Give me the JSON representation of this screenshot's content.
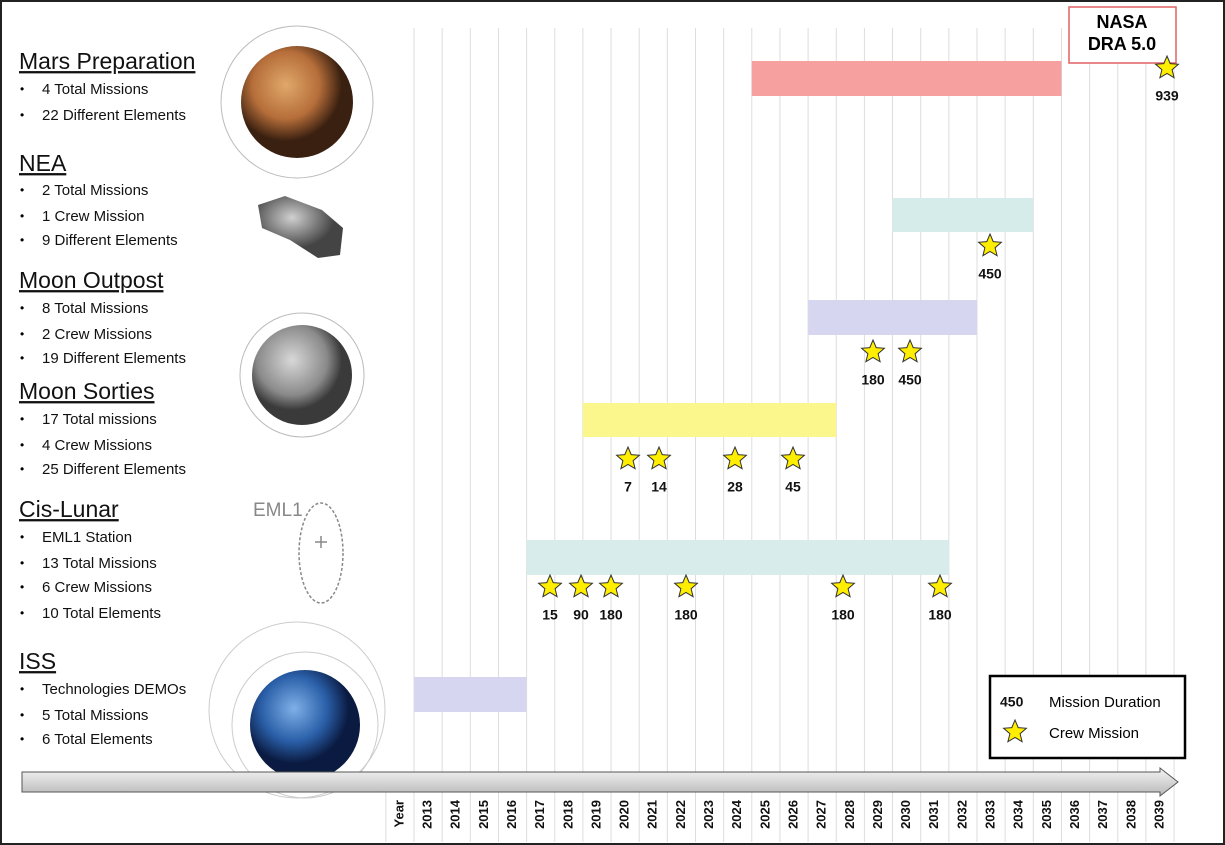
{
  "sections": [
    {
      "title": "Mars Preparation",
      "bullets": [
        "4 Total Missions",
        "22 Different Elements"
      ],
      "crew_durations": [
        939
      ]
    },
    {
      "title": "NEA",
      "bullets": [
        "2 Total Missions",
        "1 Crew Mission",
        "9 Different  Elements"
      ],
      "crew_durations": [
        450
      ]
    },
    {
      "title": "Moon Outpost",
      "bullets": [
        "8 Total Missions",
        "2 Crew Missions",
        "19 Different  Elements"
      ],
      "crew_durations": [
        180,
        450
      ]
    },
    {
      "title": "Moon Sorties",
      "bullets": [
        "17 Total missions",
        "4 Crew Missions",
        "25 Different Elements"
      ],
      "crew_durations": [
        7,
        14,
        28,
        45
      ]
    },
    {
      "title": "Cis-Lunar",
      "bullets": [
        "EML1 Station",
        "13 Total Missions",
        "6 Crew Missions",
        "10 Total Elements"
      ],
      "crew_durations": [
        15,
        90,
        180,
        180,
        180,
        180
      ]
    },
    {
      "title": "ISS",
      "bullets": [
        "Technologies DEMOs",
        "5 Total Missions",
        "6 Total Elements"
      ],
      "crew_durations": []
    }
  ],
  "eml1_label": "EML1",
  "reference_box": [
    "NASA",
    "DRA 5.0"
  ],
  "timeline": {
    "axis_label": "Year",
    "years": [
      "2013",
      "2014",
      "2015",
      "2016",
      "2017",
      "2018",
      "2019",
      "2020",
      "2021",
      "2022",
      "2023",
      "2024",
      "2025",
      "2026",
      "2027",
      "2028",
      "2029",
      "2030",
      "2031",
      "2032",
      "2033",
      "2034",
      "2035",
      "2036",
      "2037",
      "2038",
      "2039"
    ]
  },
  "legend": {
    "sample_value": "450",
    "duration_label": "Mission Duration",
    "crew_label": "Crew Mission"
  }
}
